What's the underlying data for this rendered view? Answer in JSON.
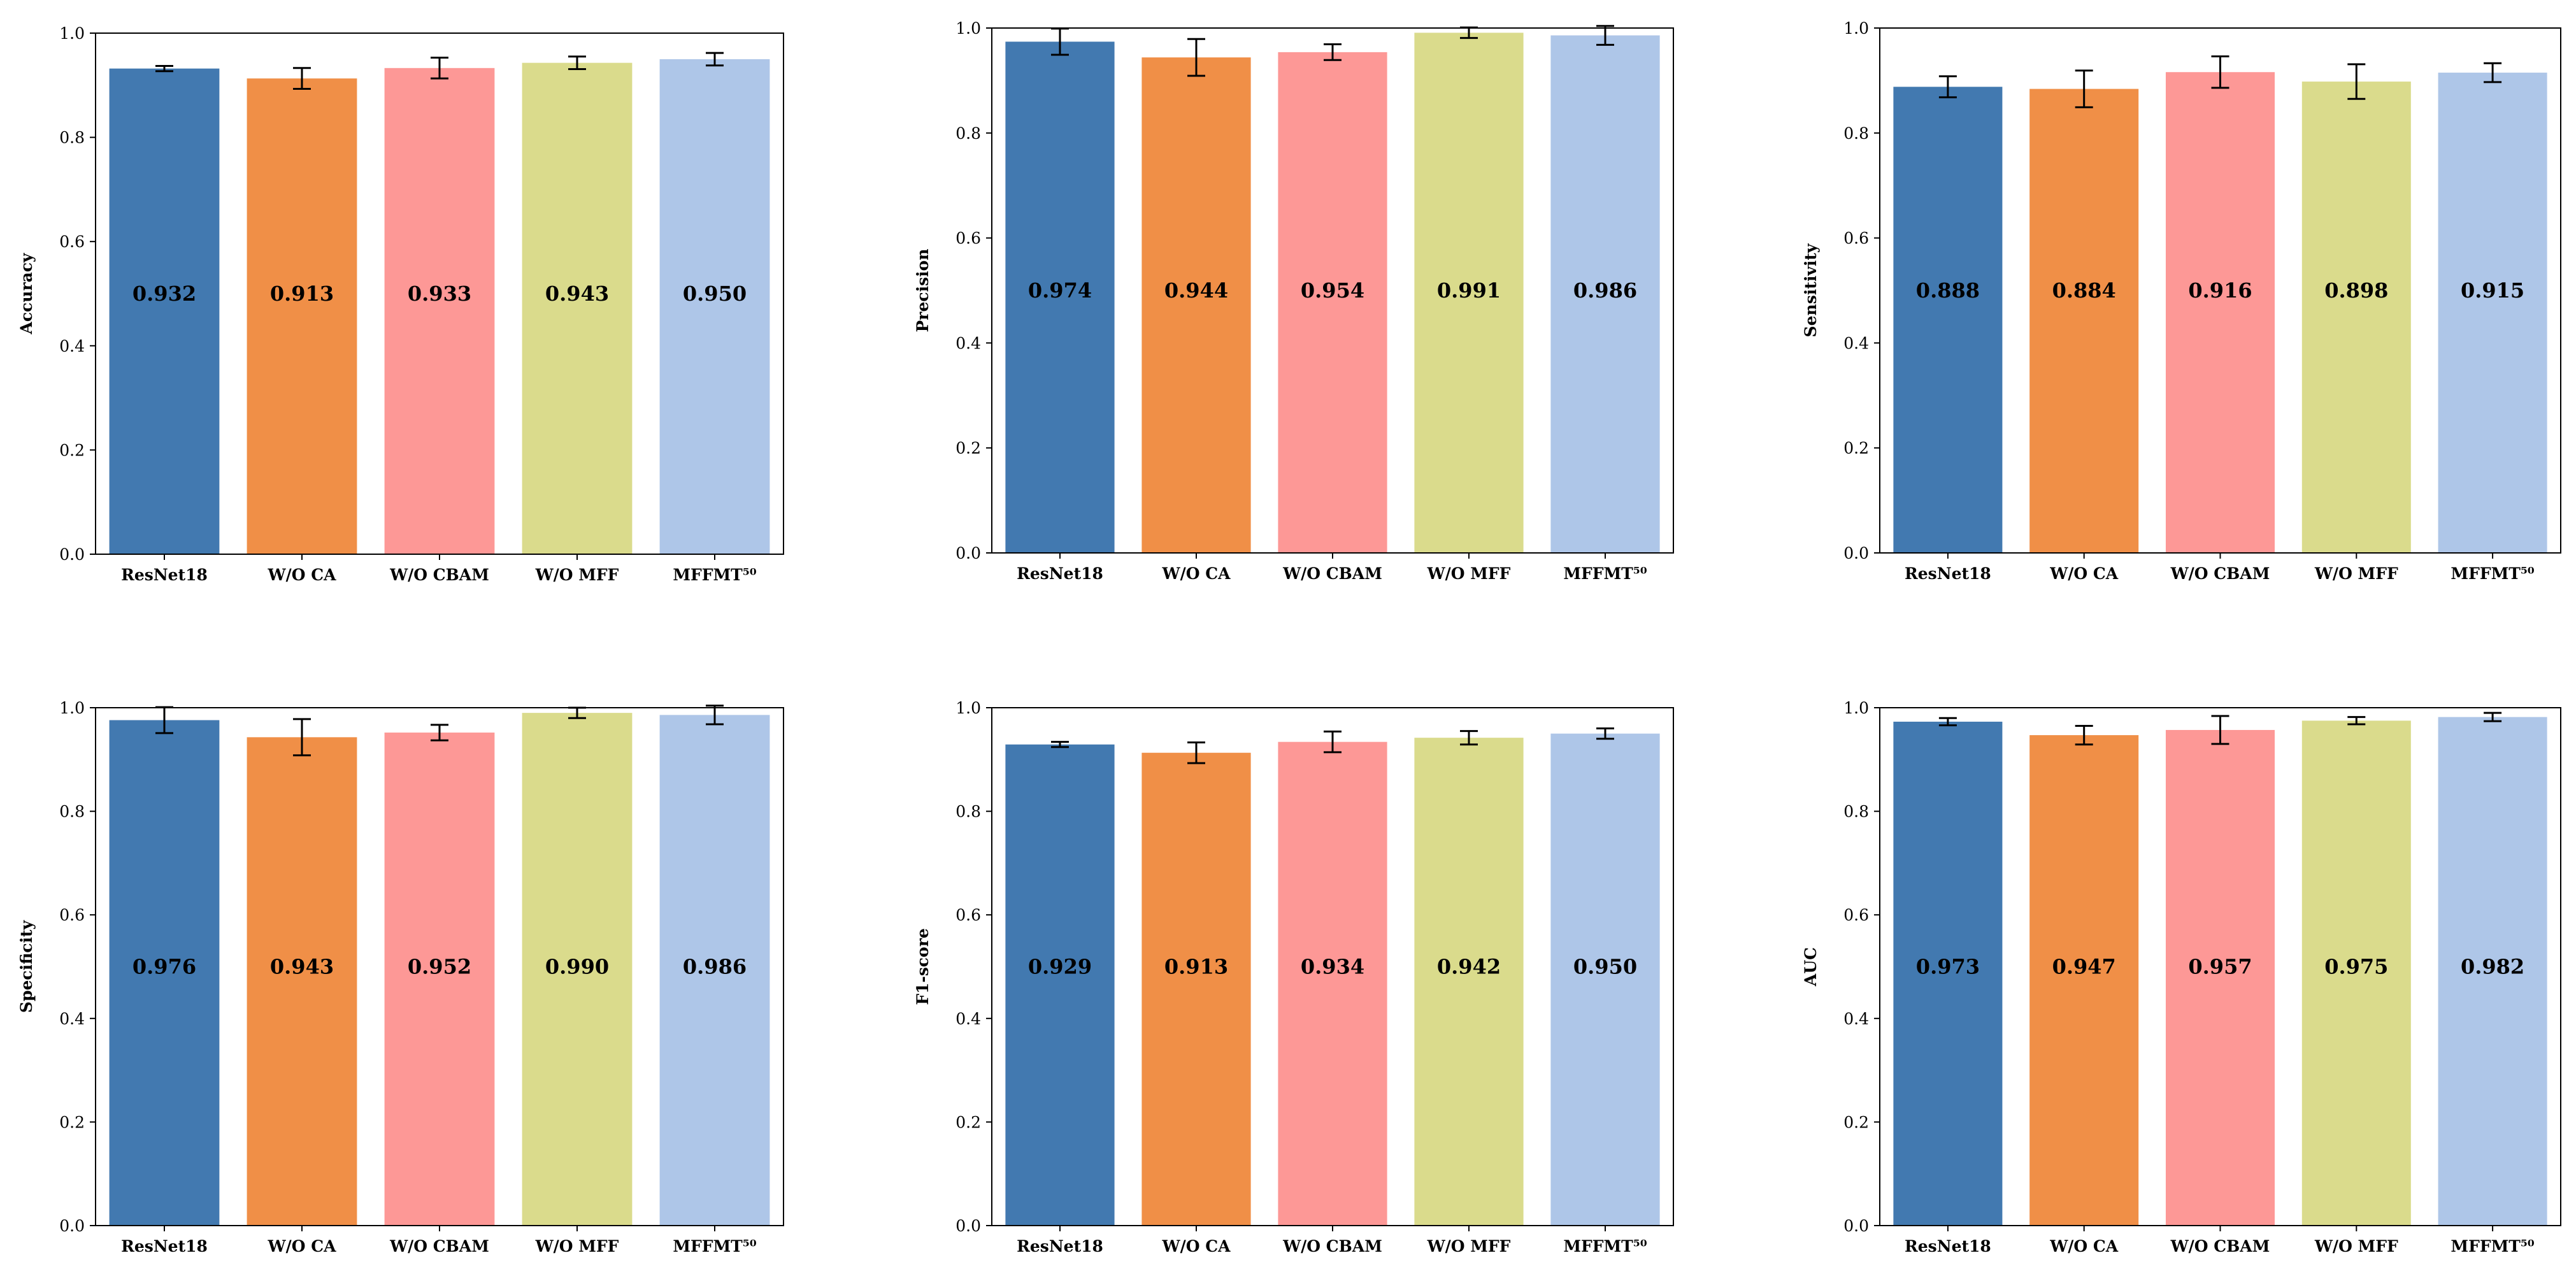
{
  "chart_data": [
    {
      "type": "bar",
      "title": "",
      "xlabel": "",
      "ylabel": "Accuracy",
      "ylim": [
        0,
        1
      ],
      "yticks": [
        "0.0",
        "0.2",
        "0.4",
        "0.6",
        "0.8",
        "1.0"
      ],
      "categories": [
        "ResNet18",
        "W/O CA",
        "W/O CBAM",
        "W/O MFF",
        "MFFMT⁵⁰"
      ],
      "values": [
        0.932,
        0.913,
        0.933,
        0.943,
        0.95
      ],
      "errors": [
        0.005,
        0.02,
        0.02,
        0.012,
        0.012
      ],
      "value_labels": [
        "0.932",
        "0.913",
        "0.933",
        "0.943",
        "0.950"
      ],
      "colors": [
        "#4279b0",
        "#f08f47",
        "#fd9896",
        "#dadb8c",
        "#aec6e8"
      ]
    },
    {
      "type": "bar",
      "title": "",
      "xlabel": "",
      "ylabel": "Precision",
      "ylim": [
        0,
        1
      ],
      "yticks": [
        "0.0",
        "0.2",
        "0.4",
        "0.6",
        "0.8",
        "1.0"
      ],
      "categories": [
        "ResNet18",
        "W/O CA",
        "W/O CBAM",
        "W/O MFF",
        "MFFMT⁵⁰"
      ],
      "values": [
        0.974,
        0.944,
        0.954,
        0.991,
        0.986
      ],
      "errors": [
        0.025,
        0.035,
        0.015,
        0.01,
        0.018
      ],
      "value_labels": [
        "0.974",
        "0.944",
        "0.954",
        "0.991",
        "0.986"
      ],
      "colors": [
        "#4279b0",
        "#f08f47",
        "#fd9896",
        "#dadb8c",
        "#aec6e8"
      ]
    },
    {
      "type": "bar",
      "title": "",
      "xlabel": "",
      "ylabel": "Sensitivity",
      "ylim": [
        0,
        1
      ],
      "yticks": [
        "0.0",
        "0.2",
        "0.4",
        "0.6",
        "0.8",
        "1.0"
      ],
      "categories": [
        "ResNet18",
        "W/O CA",
        "W/O CBAM",
        "W/O MFF",
        "MFFMT⁵⁰"
      ],
      "values": [
        0.888,
        0.884,
        0.916,
        0.898,
        0.915
      ],
      "errors": [
        0.02,
        0.035,
        0.03,
        0.033,
        0.018
      ],
      "value_labels": [
        "0.888",
        "0.884",
        "0.916",
        "0.898",
        "0.915"
      ],
      "colors": [
        "#4279b0",
        "#f08f47",
        "#fd9896",
        "#dadb8c",
        "#aec6e8"
      ]
    },
    {
      "type": "bar",
      "title": "",
      "xlabel": "",
      "ylabel": "Specificity",
      "ylim": [
        0,
        1
      ],
      "yticks": [
        "0.0",
        "0.2",
        "0.4",
        "0.6",
        "0.8",
        "1.0"
      ],
      "categories": [
        "ResNet18",
        "W/O CA",
        "W/O CBAM",
        "W/O MFF",
        "MFFMT⁵⁰"
      ],
      "values": [
        0.976,
        0.943,
        0.952,
        0.99,
        0.986
      ],
      "errors": [
        0.025,
        0.035,
        0.015,
        0.01,
        0.018
      ],
      "value_labels": [
        "0.976",
        "0.943",
        "0.952",
        "0.990",
        "0.986"
      ],
      "colors": [
        "#4279b0",
        "#f08f47",
        "#fd9896",
        "#dadb8c",
        "#aec6e8"
      ]
    },
    {
      "type": "bar",
      "title": "",
      "xlabel": "",
      "ylabel": "F1-score",
      "ylim": [
        0,
        1
      ],
      "yticks": [
        "0.0",
        "0.2",
        "0.4",
        "0.6",
        "0.8",
        "1.0"
      ],
      "categories": [
        "ResNet18",
        "W/O CA",
        "W/O CBAM",
        "W/O MFF",
        "MFFMT⁵⁰"
      ],
      "values": [
        0.929,
        0.913,
        0.934,
        0.942,
        0.95
      ],
      "errors": [
        0.005,
        0.02,
        0.02,
        0.013,
        0.01
      ],
      "value_labels": [
        "0.929",
        "0.913",
        "0.934",
        "0.942",
        "0.950"
      ],
      "colors": [
        "#4279b0",
        "#f08f47",
        "#fd9896",
        "#dadb8c",
        "#aec6e8"
      ]
    },
    {
      "type": "bar",
      "title": "",
      "xlabel": "",
      "ylabel": "AUC",
      "ylim": [
        0,
        1
      ],
      "yticks": [
        "0.0",
        "0.2",
        "0.4",
        "0.6",
        "0.8",
        "1.0"
      ],
      "categories": [
        "ResNet18",
        "W/O CA",
        "W/O CBAM",
        "W/O MFF",
        "MFFMT⁵⁰"
      ],
      "values": [
        0.973,
        0.947,
        0.957,
        0.975,
        0.982
      ],
      "errors": [
        0.007,
        0.018,
        0.027,
        0.007,
        0.008
      ],
      "value_labels": [
        "0.973",
        "0.947",
        "0.957",
        "0.975",
        "0.982"
      ],
      "colors": [
        "#4279b0",
        "#f08f47",
        "#fd9896",
        "#dadb8c",
        "#aec6e8"
      ]
    }
  ]
}
